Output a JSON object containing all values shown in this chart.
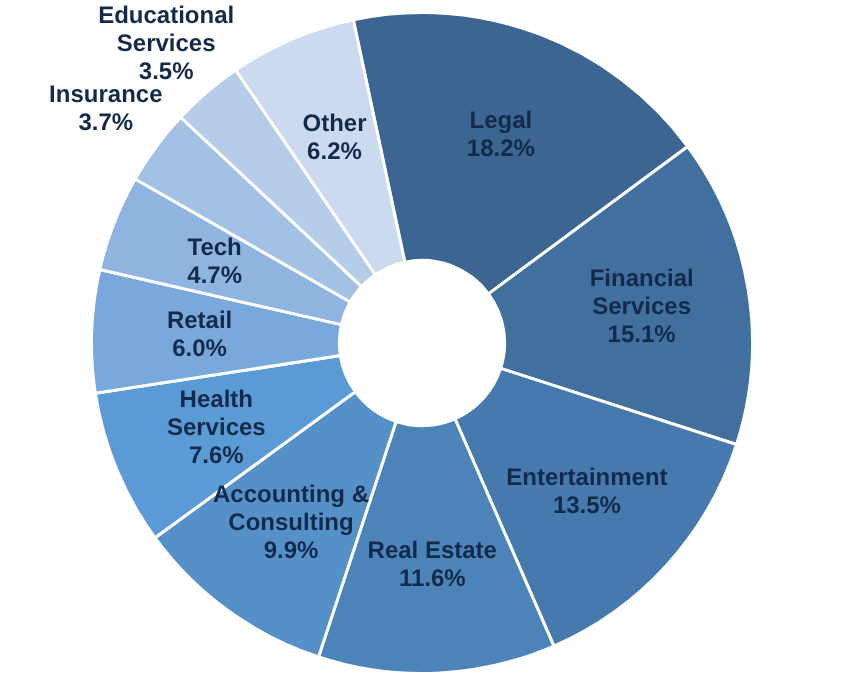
{
  "chart_data": {
    "type": "donut",
    "categories": [
      "Legal",
      "Financial Services",
      "Entertainment",
      "Real Estate",
      "Accounting & Consulting",
      "Health Services",
      "Retail",
      "Tech",
      "Insurance",
      "Educational Services",
      "Other"
    ],
    "values": [
      18.2,
      15.1,
      13.5,
      11.6,
      9.9,
      7.6,
      6.0,
      4.7,
      3.7,
      3.5,
      6.2
    ],
    "value_labels": [
      "18.2%",
      "15.1%",
      "13.5%",
      "11.6%",
      "9.9%",
      "7.6%",
      "6.0%",
      "4.7%",
      "3.7%",
      "3.5%",
      "6.2%"
    ],
    "colors": [
      "#3c6591",
      "#41709f",
      "#4679ad",
      "#4c84ba",
      "#5690c9",
      "#5b9bd5",
      "#79a8db",
      "#8fb4df",
      "#a3c1e5",
      "#b6cdea",
      "#ccdaef"
    ],
    "legend": false
  }
}
